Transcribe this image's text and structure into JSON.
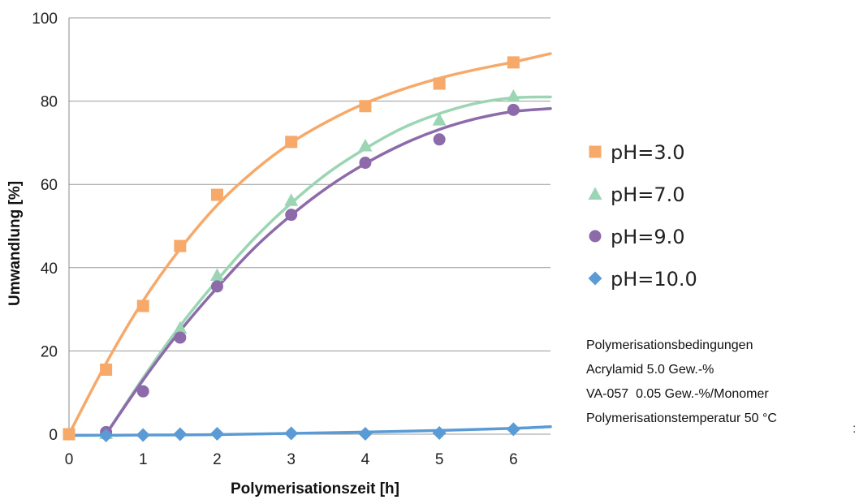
{
  "chart_data": {
    "type": "scatter",
    "xlabel": "Polymerisationszeit [h]",
    "ylabel": "Umwandlung [%]",
    "xlim": [
      0,
      6.5
    ],
    "ylim": [
      0,
      100
    ],
    "x_ticks": [
      "0",
      "1",
      "2",
      "3",
      "4",
      "5",
      "6"
    ],
    "y_ticks": [
      "0",
      "20",
      "40",
      "60",
      "80",
      "100"
    ],
    "grid": "horizontal",
    "legend_position": "right",
    "series": [
      {
        "name": "pH=3.0",
        "marker": "square",
        "color": "#F7A96A",
        "points": [
          [
            0,
            0
          ],
          [
            0.5,
            15.5
          ],
          [
            1,
            30.8
          ],
          [
            1.5,
            45.2
          ],
          [
            2,
            57.5
          ],
          [
            3,
            70.2
          ],
          [
            4,
            78.8
          ],
          [
            5,
            84.2
          ],
          [
            6,
            89.3
          ]
        ],
        "curve": [
          [
            0,
            0
          ],
          [
            0.5,
            17
          ],
          [
            1,
            32
          ],
          [
            1.5,
            44.5
          ],
          [
            2,
            55
          ],
          [
            2.5,
            63.3
          ],
          [
            3,
            70
          ],
          [
            3.5,
            75.2
          ],
          [
            4,
            79.5
          ],
          [
            4.5,
            82.8
          ],
          [
            5,
            85.5
          ],
          [
            5.5,
            87.6
          ],
          [
            6,
            89.4
          ],
          [
            6.5,
            91.4
          ]
        ]
      },
      {
        "name": "pH=7.0",
        "marker": "triangle",
        "color": "#9BD5B4",
        "points": [
          [
            0.5,
            0.2
          ],
          [
            1.5,
            25.5
          ],
          [
            2,
            38.2
          ],
          [
            3,
            56.2
          ],
          [
            4,
            69.3
          ],
          [
            5,
            75.5
          ],
          [
            6,
            81.2
          ]
        ],
        "curve": [
          [
            0.5,
            0
          ],
          [
            1,
            13.5
          ],
          [
            1.5,
            26
          ],
          [
            2,
            37
          ],
          [
            2.5,
            47
          ],
          [
            3,
            55.5
          ],
          [
            3.5,
            62.8
          ],
          [
            4,
            68.6
          ],
          [
            4.5,
            73.5
          ],
          [
            5,
            77
          ],
          [
            5.5,
            79.5
          ],
          [
            6,
            80.8
          ],
          [
            6.5,
            81
          ]
        ]
      },
      {
        "name": "pH=9.0",
        "marker": "circle",
        "color": "#8D6BAB",
        "points": [
          [
            0.5,
            0.5
          ],
          [
            1,
            10.3
          ],
          [
            1.5,
            23.2
          ],
          [
            2,
            35.5
          ],
          [
            3,
            52.7
          ],
          [
            4,
            65.2
          ],
          [
            5,
            70.8
          ],
          [
            6,
            77.9
          ]
        ],
        "curve": [
          [
            0.5,
            0
          ],
          [
            1,
            13
          ],
          [
            1.5,
            24.8
          ],
          [
            2,
            35.2
          ],
          [
            2.5,
            44.7
          ],
          [
            3,
            52.6
          ],
          [
            3.5,
            59.4
          ],
          [
            4,
            65
          ],
          [
            4.5,
            69.6
          ],
          [
            5,
            73.2
          ],
          [
            5.5,
            75.8
          ],
          [
            6,
            77.5
          ],
          [
            6.5,
            78.2
          ]
        ]
      },
      {
        "name": "pH=10.0",
        "marker": "diamond",
        "color": "#5B9BD5",
        "points": [
          [
            0.5,
            -0.3
          ],
          [
            1,
            -0.2
          ],
          [
            1.5,
            0
          ],
          [
            2,
            0.1
          ],
          [
            3,
            0.2
          ],
          [
            4,
            0.1
          ],
          [
            5,
            0.3
          ],
          [
            6,
            1.2
          ]
        ],
        "curve": [
          [
            0,
            -0.3
          ],
          [
            1,
            -0.2
          ],
          [
            2,
            -0.1
          ],
          [
            3,
            0.2
          ],
          [
            4,
            0.5
          ],
          [
            5,
            0.9
          ],
          [
            6,
            1.4
          ],
          [
            6.5,
            1.8
          ]
        ]
      }
    ]
  },
  "conditions": {
    "title": "Polymerisationsbedingungen",
    "line1": "Acrylamid 5.0 Gew.-%",
    "line2": "VA-057  0.05 Gew.-%/Monomer",
    "line3": "Polymerisationstemperatur 50 °C"
  },
  "edge_glyph": ":"
}
